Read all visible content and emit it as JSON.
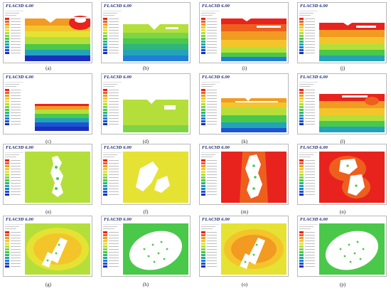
{
  "app_title": "FLAC3D 6.00",
  "legend_colors": [
    "#e8231e",
    "#ee5f1e",
    "#f29a22",
    "#f4c52a",
    "#e6e233",
    "#b4df3a",
    "#7fd444",
    "#4ac84a",
    "#2fb57e",
    "#23a3b7",
    "#1f7fd6",
    "#1c55d2",
    "#1a2fc0"
  ],
  "panels": [
    {
      "id": "a",
      "label": "(a)"
    },
    {
      "id": "b",
      "label": "(b)"
    },
    {
      "id": "i",
      "label": "(i)"
    },
    {
      "id": "j",
      "label": "(j)"
    },
    {
      "id": "c",
      "label": "(c)"
    },
    {
      "id": "d",
      "label": "(d)"
    },
    {
      "id": "k",
      "label": "(k)"
    },
    {
      "id": "l",
      "label": "(l)"
    },
    {
      "id": "e",
      "label": "(e)"
    },
    {
      "id": "f",
      "label": "(f)"
    },
    {
      "id": "m",
      "label": "(m)"
    },
    {
      "id": "n",
      "label": "(n)"
    },
    {
      "id": "g",
      "label": "(g)"
    },
    {
      "id": "h",
      "label": "(h)"
    },
    {
      "id": "o",
      "label": "(o)"
    },
    {
      "id": "p",
      "label": "(p)"
    }
  ]
}
